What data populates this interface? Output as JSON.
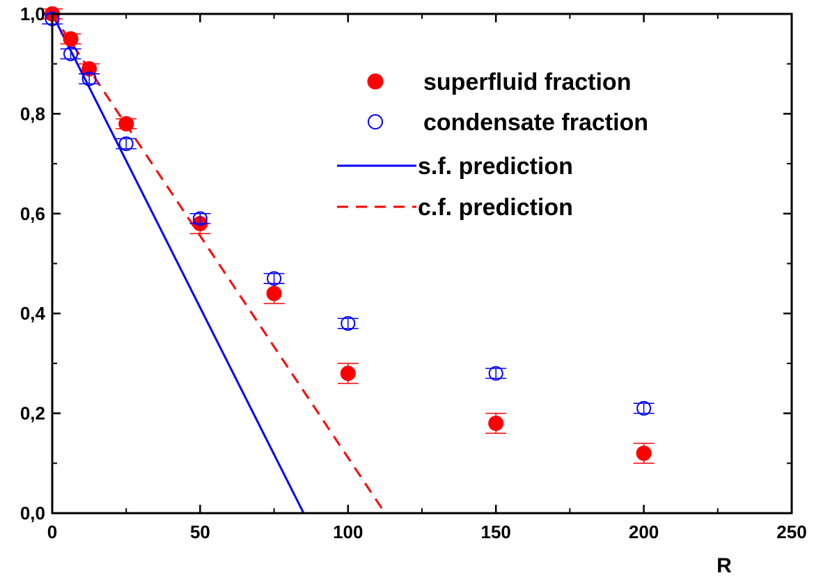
{
  "chart_data": {
    "type": "scatter",
    "title": "",
    "xlabel": "R",
    "ylabel": "",
    "xlim": [
      0,
      250
    ],
    "ylim": [
      0,
      1.0
    ],
    "x_ticks": [
      0,
      50,
      100,
      150,
      200,
      250
    ],
    "y_ticks": [
      0.0,
      0.2,
      0.4,
      0.6,
      0.8,
      1.0
    ],
    "x_tick_labels": [
      "0",
      "50",
      "100",
      "150",
      "200",
      "250"
    ],
    "y_tick_labels": [
      "0,0",
      "0,2",
      "0,4",
      "0,6",
      "0,8",
      "1,0"
    ],
    "grid": false,
    "legend_position": "top-right",
    "series": [
      {
        "name": "superfluid fraction",
        "kind": "points",
        "marker": "filled-circle",
        "color": "#ff0000",
        "x": [
          0,
          6.25,
          12.5,
          25,
          50,
          75,
          100,
          150,
          200
        ],
        "y": [
          1.0,
          0.95,
          0.89,
          0.78,
          0.58,
          0.44,
          0.28,
          0.18,
          0.12
        ],
        "err": [
          0.01,
          0.01,
          0.01,
          0.01,
          0.02,
          0.02,
          0.02,
          0.02,
          0.02
        ]
      },
      {
        "name": "condensate fraction",
        "kind": "points",
        "marker": "open-circle",
        "color": "#0000ff",
        "x": [
          0,
          6.25,
          12.5,
          25,
          50,
          75,
          100,
          150,
          200
        ],
        "y": [
          0.99,
          0.92,
          0.87,
          0.74,
          0.59,
          0.47,
          0.38,
          0.28,
          0.21
        ],
        "err": [
          0.01,
          0.01,
          0.01,
          0.01,
          0.01,
          0.01,
          0.01,
          0.01,
          0.01
        ]
      },
      {
        "name": "s.f. prediction",
        "kind": "line",
        "style": "solid",
        "color": "#0000ff",
        "x": [
          0,
          85
        ],
        "y": [
          1.0,
          0.0
        ]
      },
      {
        "name": "c.f. prediction",
        "kind": "line",
        "style": "dashed",
        "color": "#ff0000",
        "x": [
          0,
          112.5
        ],
        "y": [
          1.0,
          0.0
        ]
      }
    ]
  }
}
